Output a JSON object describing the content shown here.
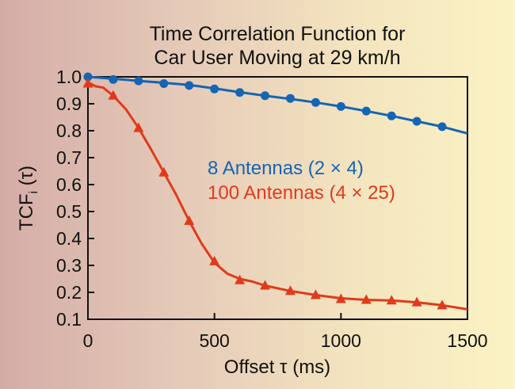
{
  "chart_data": {
    "type": "line",
    "title_line1": "Time Correlation  Function for",
    "title_line2": "Car User Moving at 29 km/h",
    "xlabel": "Offset τ (ms)",
    "ylabel_main": "TCF",
    "ylabel_sub": "i",
    "ylabel_arg": " (τ)",
    "xlim": [
      0,
      1500
    ],
    "ylim": [
      0.1,
      1.0
    ],
    "x_ticks": [
      0,
      500,
      1000,
      1500
    ],
    "y_ticks": [
      1.0,
      0.9,
      0.8,
      0.7,
      0.6,
      0.5,
      0.4,
      0.3,
      0.2,
      0.1
    ],
    "grid": false,
    "series": [
      {
        "name": "8 Antennas (2 × 4)",
        "color": "#1565b4",
        "marker": "circle",
        "curve": [
          [
            0,
            1.0
          ],
          [
            100,
            0.993
          ],
          [
            200,
            0.985
          ],
          [
            300,
            0.978
          ],
          [
            400,
            0.97
          ],
          [
            500,
            0.957
          ],
          [
            600,
            0.943
          ],
          [
            700,
            0.93
          ],
          [
            800,
            0.918
          ],
          [
            900,
            0.905
          ],
          [
            1000,
            0.89
          ],
          [
            1100,
            0.873
          ],
          [
            1200,
            0.855
          ],
          [
            1300,
            0.835
          ],
          [
            1400,
            0.815
          ],
          [
            1500,
            0.79
          ]
        ],
        "markers": [
          [
            0,
            1.0
          ],
          [
            100,
            0.99
          ],
          [
            200,
            0.985
          ],
          [
            300,
            0.975
          ],
          [
            400,
            0.968
          ],
          [
            500,
            0.955
          ],
          [
            600,
            0.942
          ],
          [
            700,
            0.93
          ],
          [
            800,
            0.92
          ],
          [
            900,
            0.905
          ],
          [
            1000,
            0.89
          ],
          [
            1100,
            0.873
          ],
          [
            1200,
            0.855
          ],
          [
            1300,
            0.835
          ],
          [
            1400,
            0.815
          ]
        ]
      },
      {
        "name": "100 Antennas (4 × 25)",
        "color": "#e03a1c",
        "marker": "triangle",
        "curve": [
          [
            0,
            0.98
          ],
          [
            30,
            0.965
          ],
          [
            60,
            0.96
          ],
          [
            100,
            0.93
          ],
          [
            150,
            0.88
          ],
          [
            200,
            0.81
          ],
          [
            250,
            0.73
          ],
          [
            300,
            0.645
          ],
          [
            350,
            0.56
          ],
          [
            400,
            0.465
          ],
          [
            450,
            0.38
          ],
          [
            500,
            0.31
          ],
          [
            550,
            0.27
          ],
          [
            600,
            0.25
          ],
          [
            650,
            0.24
          ],
          [
            700,
            0.225
          ],
          [
            800,
            0.205
          ],
          [
            900,
            0.19
          ],
          [
            1000,
            0.178
          ],
          [
            1100,
            0.172
          ],
          [
            1200,
            0.17
          ],
          [
            1300,
            0.163
          ],
          [
            1400,
            0.152
          ],
          [
            1500,
            0.137
          ]
        ],
        "markers": [
          [
            0,
            0.975
          ],
          [
            100,
            0.93
          ],
          [
            200,
            0.81
          ],
          [
            300,
            0.645
          ],
          [
            400,
            0.465
          ],
          [
            500,
            0.315
          ],
          [
            600,
            0.245
          ],
          [
            700,
            0.225
          ],
          [
            800,
            0.205
          ],
          [
            900,
            0.19
          ],
          [
            1000,
            0.175
          ],
          [
            1100,
            0.172
          ],
          [
            1200,
            0.17
          ],
          [
            1300,
            0.163
          ],
          [
            1400,
            0.152
          ]
        ]
      }
    ]
  }
}
